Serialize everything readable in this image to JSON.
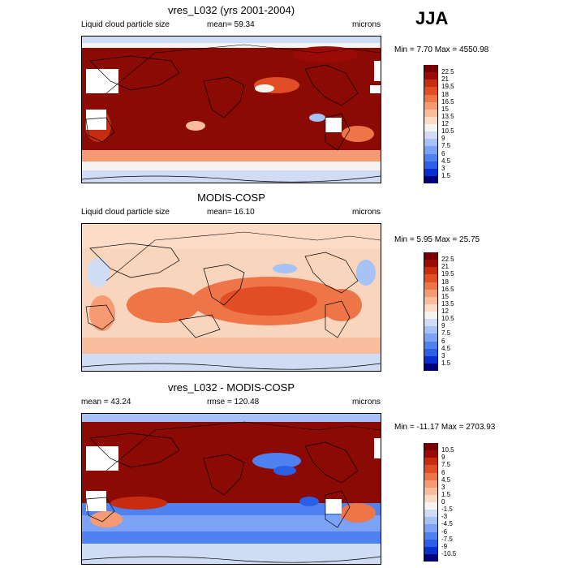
{
  "season": "JJA",
  "panels": [
    {
      "title": "vres_L032 (yrs 2001-2004)",
      "left_label": "Liquid cloud particle size",
      "center_label": "mean=  59.34",
      "right_label": "microns",
      "minmax": "Min =   7.70 Max = 4550.98",
      "cbar_labels": [
        "22.5",
        "21",
        "19.5",
        "18",
        "16.5",
        "15",
        "13.5",
        "12",
        "10.5",
        "9",
        "7.5",
        "6",
        "4.5",
        "3",
        "1.5"
      ]
    },
    {
      "title": "MODIS-COSP",
      "left_label": "Liquid cloud particle size",
      "center_label": "mean=  16.10",
      "right_label": "microns",
      "minmax": "Min =   5.95 Max =  25.75",
      "cbar_labels": [
        "22.5",
        "21",
        "19.5",
        "18",
        "16.5",
        "15",
        "13.5",
        "12",
        "10.5",
        "9",
        "7.5",
        "6",
        "4.5",
        "3",
        "1.5"
      ]
    },
    {
      "title": "vres_L032 - MODIS-COSP",
      "left_label": "mean =  43.24",
      "center_label": "rmse = 120.48",
      "right_label": "microns",
      "minmax": "Min = -11.17 Max = 2703.93",
      "cbar_labels": [
        "10.5",
        "9",
        "7.5",
        "6",
        "4.5",
        "3",
        "1.5",
        "0",
        "-1.5",
        "-3",
        "-4.5",
        "-6",
        "-7.5",
        "-9",
        "-10.5"
      ]
    }
  ],
  "colors": {
    "seq": [
      "#00007a",
      "#0a2fcf",
      "#2b5fe6",
      "#4f81f0",
      "#7ba2f4",
      "#a7c2f6",
      "#cfdcf4",
      "#f6f4f0",
      "#fcdcc7",
      "#f9bd9c",
      "#f59a72",
      "#ee7548",
      "#e14e25",
      "#c72c0e",
      "#9b0b05",
      "#780000"
    ],
    "map_bg_model": "#8b0a03",
    "map_bg_obs": "#fad5bd",
    "map_bg_diff": "#8b0a03"
  }
}
